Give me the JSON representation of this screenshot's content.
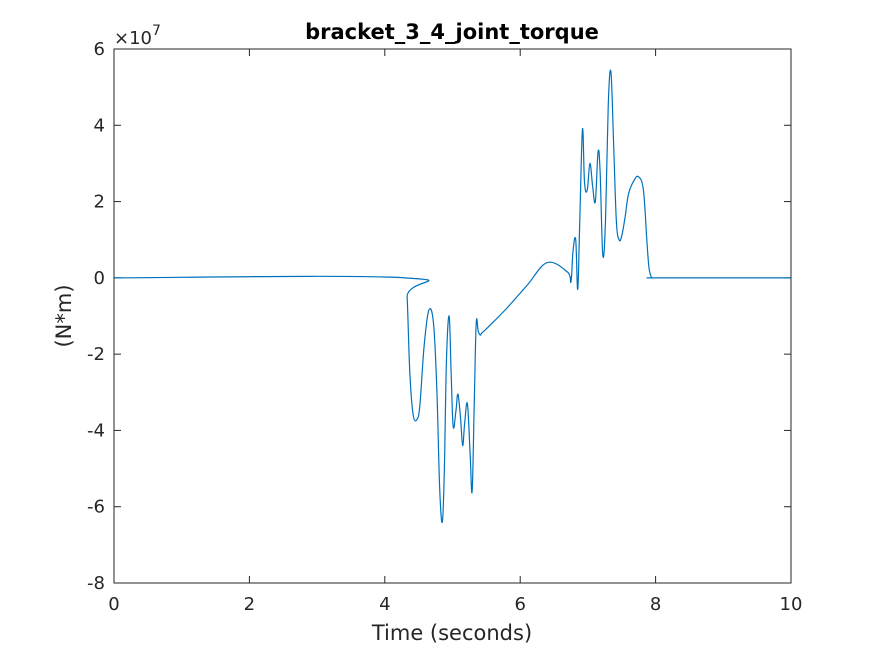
{
  "chart_data": {
    "type": "line",
    "title": "bracket_3_4_joint_torque",
    "xlabel": "Time (seconds)",
    "ylabel": "(N*m)",
    "y_exponent_base": "×10",
    "y_exponent_power": "7",
    "xlim": [
      0,
      10
    ],
    "ylim": [
      -8,
      6
    ],
    "x_ticks": [
      0,
      2,
      4,
      6,
      8,
      10
    ],
    "y_ticks": [
      -8,
      -6,
      -4,
      -2,
      0,
      2,
      4,
      6
    ],
    "x_tick_labels": [
      "0",
      "2",
      "4",
      "6",
      "8",
      "10"
    ],
    "y_tick_labels": [
      "-8",
      "-6",
      "-4",
      "-2",
      "0",
      "2",
      "4",
      "6"
    ],
    "grid": false,
    "series": [
      {
        "color": "#0072BD",
        "x": [
          0,
          4.3,
          4.33,
          4.37,
          4.42,
          4.48,
          4.52,
          4.58,
          4.65,
          4.72,
          4.77,
          4.81,
          4.85,
          4.88,
          4.91,
          4.95,
          4.98,
          5.01,
          5.05,
          5.08,
          5.12,
          5.15,
          5.18,
          5.22,
          5.26,
          5.29,
          5.32,
          5.35,
          5.38,
          5.41,
          5.43,
          5.46,
          5.55,
          5.8,
          6.1,
          6.4,
          6.7,
          6.75,
          6.78,
          6.82,
          6.85,
          6.88,
          6.92,
          6.95,
          6.99,
          7.03,
          7.07,
          7.11,
          7.15,
          7.18,
          7.22,
          7.26,
          7.3,
          7.34,
          7.38,
          7.42,
          7.46,
          7.5,
          7.55,
          7.6,
          7.68,
          7.75,
          7.82,
          7.87,
          7.9,
          7.93,
          7.95,
          7.98,
          8.05,
          10
        ],
        "y": [
          0,
          0,
          -0.5,
          -2.5,
          -3.6,
          -3.7,
          -3.3,
          -1.8,
          -0.85,
          -1.2,
          -3.0,
          -5.5,
          -6.4,
          -5.0,
          -2.2,
          -1.0,
          -2.5,
          -3.9,
          -3.5,
          -3.05,
          -3.7,
          -4.4,
          -3.8,
          -3.3,
          -4.6,
          -5.6,
          -3.4,
          -1.2,
          -1.4,
          -1.5,
          -1.45,
          -1.4,
          -1.25,
          -0.8,
          -0.2,
          0.4,
          0.15,
          -0.1,
          0.7,
          1.0,
          -0.3,
          1.5,
          3.9,
          2.5,
          2.3,
          3.0,
          2.4,
          2.0,
          3.3,
          2.8,
          0.6,
          1.5,
          4.5,
          5.4,
          3.5,
          1.5,
          1.0,
          1.1,
          1.6,
          2.2,
          2.55,
          2.65,
          2.3,
          1.0,
          0.3,
          0.05,
          0,
          0,
          0,
          0
        ]
      }
    ]
  }
}
